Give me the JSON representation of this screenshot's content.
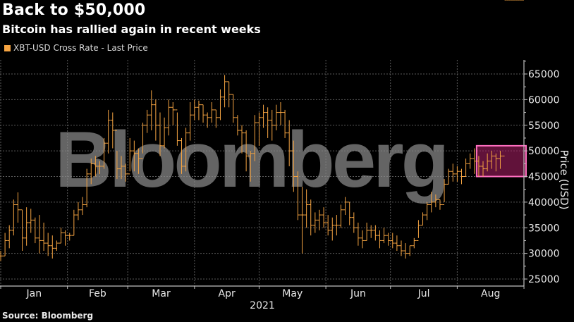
{
  "header": {
    "title": "Back to $50,000",
    "subtitle": "Bitcoin has rallied again in recent weeks"
  },
  "legend": {
    "items": [
      {
        "label": "XBT-USD Cross Rate - Last Price",
        "color": "#f5a442"
      }
    ]
  },
  "footer": {
    "source": "Source: Bloomberg"
  },
  "watermark": "Bloomberg",
  "colors": {
    "background": "#000000",
    "series": "#f5a442",
    "grid": "#5a5a5a",
    "axis": "#bfbfbf",
    "highlight_fill": "#b0206a",
    "highlight_stroke": "#ff6fc0"
  },
  "chart_data": {
    "type": "bar",
    "subtype": "ohlc-price-bars",
    "title": "Back to $50,000",
    "subtitle": "Bitcoin has rallied again in recent weeks",
    "xlabel": "2021",
    "ylabel": "Price (USD)",
    "ylim": [
      24000,
      67000
    ],
    "y_ticks": [
      25000,
      30000,
      35000,
      40000,
      45000,
      50000,
      55000,
      60000,
      65000
    ],
    "x_ticks": [
      "Jan",
      "Feb",
      "Mar",
      "Apr",
      "May",
      "Jun",
      "Jul",
      "Aug"
    ],
    "x_year_label": "2021",
    "grid": true,
    "legend_position": "top-left",
    "y_axis_position": "right",
    "series": [
      {
        "name": "XBT-USD Cross Rate - Last Price",
        "x_day": [
          1,
          3,
          5,
          7,
          9,
          11,
          13,
          15,
          17,
          19,
          21,
          23,
          25,
          27,
          29,
          31,
          33,
          35,
          37,
          39,
          41,
          43,
          45,
          47,
          49,
          51,
          53,
          55,
          57,
          59,
          61,
          63,
          65,
          67,
          69,
          71,
          73,
          75,
          77,
          79,
          81,
          83,
          85,
          87,
          89,
          91,
          93,
          95,
          97,
          99,
          101,
          103,
          105,
          107,
          109,
          111,
          113,
          115,
          117,
          119,
          121,
          123,
          125,
          127,
          129,
          131,
          133,
          135,
          137,
          139,
          141,
          143,
          145,
          147,
          149,
          151,
          153,
          155,
          157,
          159,
          161,
          163,
          165,
          167,
          169,
          171,
          173,
          175,
          177,
          179,
          181,
          183,
          185,
          187,
          189,
          191,
          193,
          195,
          197,
          199,
          201,
          203,
          205,
          207,
          209,
          211,
          213,
          215,
          217,
          219,
          221,
          223,
          225,
          227,
          229,
          231,
          233,
          235,
          237,
          239,
          241,
          243
        ],
        "high": [
          30500,
          34000,
          35500,
          40500,
          41900,
          38500,
          39000,
          38700,
          37000,
          37500,
          36000,
          34000,
          33500,
          32500,
          35000,
          34500,
          34000,
          38500,
          40000,
          41000,
          46500,
          48500,
          49000,
          48000,
          52500,
          58000,
          57500,
          50000,
          49000,
          47500,
          52500,
          52000,
          50500,
          55500,
          58000,
          61800,
          60000,
          57500,
          56500,
          60000,
          59500,
          57500,
          52500,
          54500,
          59500,
          60000,
          59800,
          59000,
          57500,
          59500,
          58000,
          62000,
          64800,
          63500,
          61000,
          57000,
          55000,
          54000,
          50000,
          57000,
          57500,
          59000,
          58500,
          58000,
          59000,
          59500,
          58000,
          56000,
          52000,
          46000,
          43000,
          42500,
          40500,
          38000,
          38500,
          39000,
          37500,
          37000,
          37500,
          39500,
          41000,
          40000,
          38000,
          36000,
          34500,
          36000,
          35500,
          35500,
          34500,
          35000,
          34000,
          34000,
          33500,
          32500,
          32000,
          31500,
          33000,
          36500,
          38000,
          40000,
          42000,
          41500,
          40500,
          44500,
          46500,
          47500,
          47000,
          46500,
          48500,
          49500,
          50500,
          49000,
          48000,
          49500,
          50000,
          49500,
          50000
        ],
        "low": [
          28500,
          29500,
          31000,
          33500,
          36000,
          30500,
          31500,
          34000,
          32000,
          30000,
          30500,
          29500,
          29000,
          30500,
          32000,
          31500,
          32500,
          33500,
          36500,
          37500,
          39000,
          43500,
          45000,
          45500,
          46500,
          49500,
          50500,
          44500,
          44500,
          44000,
          46000,
          46000,
          45500,
          49500,
          53500,
          54000,
          52000,
          49000,
          50500,
          53000,
          55000,
          51000,
          45500,
          46000,
          52000,
          56000,
          56000,
          55500,
          54500,
          55500,
          54500,
          56000,
          58500,
          58500,
          55500,
          53000,
          49500,
          46000,
          44000,
          48000,
          51000,
          54500,
          52500,
          52000,
          54000,
          55000,
          52500,
          47000,
          42000,
          36500,
          30000,
          35000,
          33500,
          34000,
          34500,
          35000,
          33500,
          32500,
          33500,
          35000,
          37500,
          35500,
          34000,
          31500,
          31000,
          32500,
          33000,
          32500,
          31000,
          32000,
          31500,
          31000,
          30500,
          29500,
          29000,
          29500,
          31000,
          33000,
          35500,
          36500,
          38000,
          39000,
          38500,
          40000,
          43500,
          44000,
          44000,
          43500,
          45000,
          46500,
          45500,
          45000,
          45000,
          46000,
          46500,
          46000,
          46500
        ],
        "close": [
          29500,
          32500,
          34500,
          39500,
          38500,
          33000,
          36000,
          36500,
          33000,
          32500,
          32000,
          31500,
          31000,
          32000,
          34000,
          33500,
          33500,
          37500,
          38500,
          39500,
          45500,
          47500,
          47000,
          47000,
          51500,
          56000,
          54000,
          46500,
          47000,
          45500,
          50000,
          49500,
          48500,
          55000,
          57000,
          59000,
          55000,
          51000,
          54500,
          58500,
          58000,
          52000,
          47000,
          53500,
          57000,
          58500,
          59000,
          57000,
          56500,
          58000,
          56500,
          60500,
          63500,
          61000,
          56500,
          54000,
          53500,
          49000,
          49500,
          55500,
          56500,
          57500,
          56000,
          55000,
          57500,
          57500,
          53500,
          50000,
          45000,
          37500,
          37500,
          39500,
          35500,
          36500,
          37500,
          36000,
          34500,
          35500,
          35500,
          38500,
          40000,
          37000,
          35000,
          33000,
          32500,
          34500,
          34500,
          33500,
          32500,
          33500,
          32500,
          32000,
          31500,
          30500,
          30000,
          31500,
          32500,
          35500,
          37500,
          39500,
          40000,
          40500,
          39500,
          43500,
          46000,
          45500,
          46000,
          45000,
          47500,
          48500,
          48000,
          47000,
          46500,
          48000,
          49000,
          48500,
          49000
        ]
      }
    ],
    "highlight_box": {
      "x_day_start": 222,
      "x_day_end": 243,
      "y_low": 45000,
      "y_high": 51000
    }
  }
}
